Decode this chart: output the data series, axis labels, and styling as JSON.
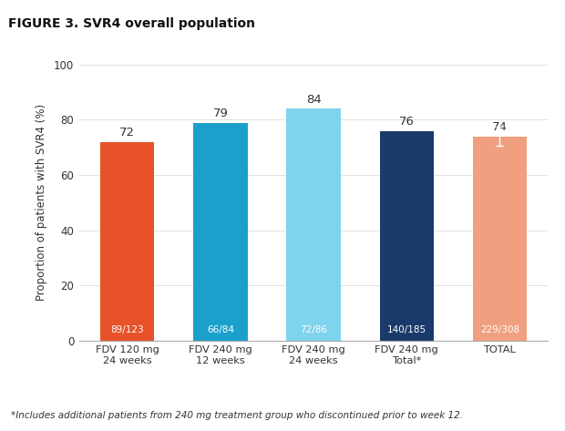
{
  "title": "FIGURE 3. SVR4 overall population",
  "title_bg_color": "#b8c4d8",
  "categories": [
    "FDV 120 mg\n24 weeks",
    "FDV 240 mg\n12 weeks",
    "FDV 240 mg\n24 weeks",
    "FDV 240 mg\nTotal*",
    "TOTAL"
  ],
  "values": [
    72,
    79,
    84,
    76,
    74
  ],
  "bar_colors": [
    "#e8522a",
    "#1ba0cb",
    "#7fd4ed",
    "#1a3a6b",
    "#f0a080"
  ],
  "bar_labels": [
    "89/123",
    "66/84",
    "72/86",
    "140/185",
    "229/308"
  ],
  "ylabel": "Proportion of patients with SVR4 (%)",
  "ylim": [
    0,
    100
  ],
  "yticks": [
    0,
    20,
    40,
    60,
    80,
    100
  ],
  "footnote": "*Includes additional patients from 240 mg treatment group who discontinued prior to week 12.",
  "error_bar_last": 3.5,
  "background_color": "#ffffff"
}
